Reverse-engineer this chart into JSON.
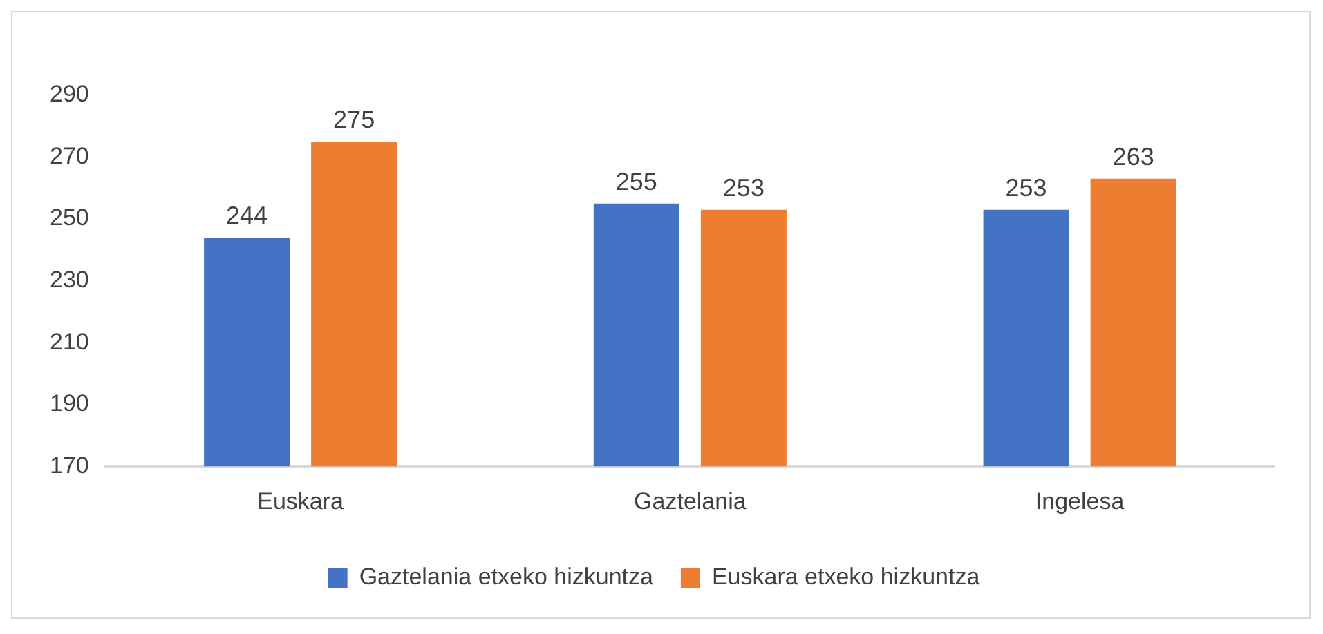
{
  "chart_data": {
    "type": "bar",
    "categories": [
      "Euskara",
      "Gaztelania",
      "Ingelesa"
    ],
    "series": [
      {
        "name": "Gaztelania etxeko hizkuntza",
        "color": "#4472c4",
        "values": [
          244,
          255,
          253
        ]
      },
      {
        "name": "Euskara etxeko hizkuntza",
        "color": "#ed7d31",
        "values": [
          275,
          253,
          263
        ]
      }
    ],
    "ylim": [
      170,
      290
    ],
    "yticks": [
      170,
      190,
      210,
      230,
      250,
      270,
      290
    ],
    "grid": false,
    "legend": "bottom",
    "data_labels": true
  }
}
